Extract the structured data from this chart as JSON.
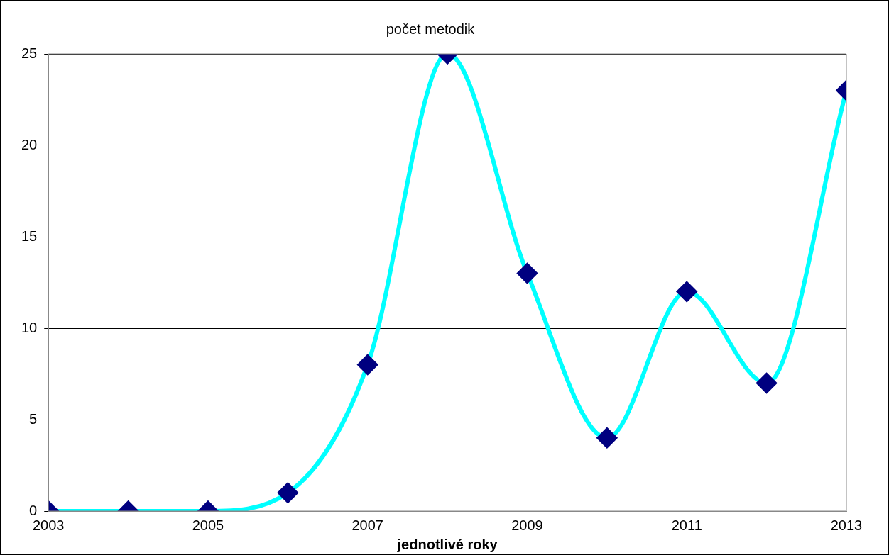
{
  "chart_data": {
    "type": "line",
    "title": "počet metodik",
    "xlabel": "jednotlivé roky",
    "x": [
      2003,
      2004,
      2005,
      2006,
      2007,
      2008,
      2009,
      2010,
      2011,
      2012,
      2013
    ],
    "series": [
      {
        "color": "#00ffff",
        "values": [
          0,
          0,
          0,
          1,
          8,
          25,
          13,
          4,
          12,
          7,
          23
        ]
      }
    ],
    "xlim": [
      2003,
      2013
    ],
    "xticks": [
      2003,
      2005,
      2007,
      2009,
      2011,
      2013
    ],
    "ylim": [
      0,
      25
    ],
    "yticks": [
      0,
      5,
      10,
      15,
      20,
      25
    ],
    "grid": "y",
    "legend": false,
    "marker": "diamond",
    "line_style": "solid"
  }
}
